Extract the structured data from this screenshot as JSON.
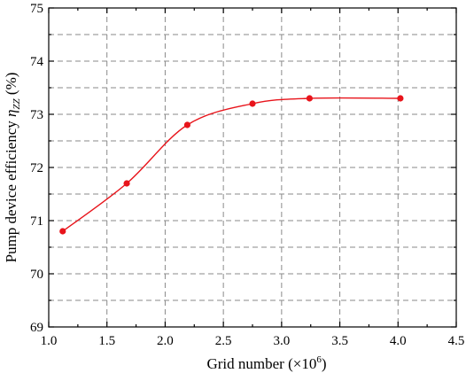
{
  "chart_data": {
    "type": "line",
    "xlabel": "Grid number (×10",
    "xlabel_sup": "6",
    "xlabel_close": ")",
    "ylabel_prefix": "Pump device efficiency ",
    "ylabel_symbol": "η",
    "ylabel_subscript": "ZZ",
    "ylabel_suffix": " (%)",
    "xlim": [
      1.0,
      4.5
    ],
    "ylim": [
      69,
      75
    ],
    "x_ticks": [
      "1.0",
      "1.5",
      "2.0",
      "2.5",
      "3.0",
      "3.5",
      "4.0",
      "4.5"
    ],
    "y_ticks": [
      "69",
      "70",
      "71",
      "72",
      "73",
      "74",
      "75"
    ],
    "grid": true,
    "series": [
      {
        "color": "#e8141b",
        "x": [
          1.12,
          1.67,
          2.19,
          2.75,
          3.24,
          4.02
        ],
        "y": [
          70.8,
          71.7,
          72.8,
          73.2,
          73.3,
          73.3
        ]
      }
    ]
  }
}
